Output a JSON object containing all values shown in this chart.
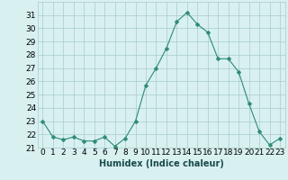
{
  "x": [
    0,
    1,
    2,
    3,
    4,
    5,
    6,
    7,
    8,
    9,
    10,
    11,
    12,
    13,
    14,
    15,
    16,
    17,
    18,
    19,
    20,
    21,
    22,
    23
  ],
  "y": [
    23.0,
    21.8,
    21.6,
    21.8,
    21.5,
    21.5,
    21.8,
    21.1,
    21.7,
    23.0,
    25.7,
    27.0,
    28.5,
    30.5,
    31.2,
    30.3,
    29.7,
    27.7,
    27.7,
    26.7,
    24.3,
    22.2,
    21.2,
    21.7
  ],
  "line_color": "#2d8b72",
  "marker": "D",
  "marker_size": 2.5,
  "bg_color": "#d8f0f0",
  "grid_color": "#a8cccc",
  "xlabel": "Humidex (Indice chaleur)",
  "ylim": [
    21,
    32
  ],
  "xlim": [
    -0.5,
    23.5
  ],
  "yticks": [
    21,
    22,
    23,
    24,
    25,
    26,
    27,
    28,
    29,
    30,
    31
  ],
  "xticks": [
    0,
    1,
    2,
    3,
    4,
    5,
    6,
    7,
    8,
    9,
    10,
    11,
    12,
    13,
    14,
    15,
    16,
    17,
    18,
    19,
    20,
    21,
    22,
    23
  ],
  "xlabel_fontsize": 7,
  "tick_fontsize": 6.5
}
